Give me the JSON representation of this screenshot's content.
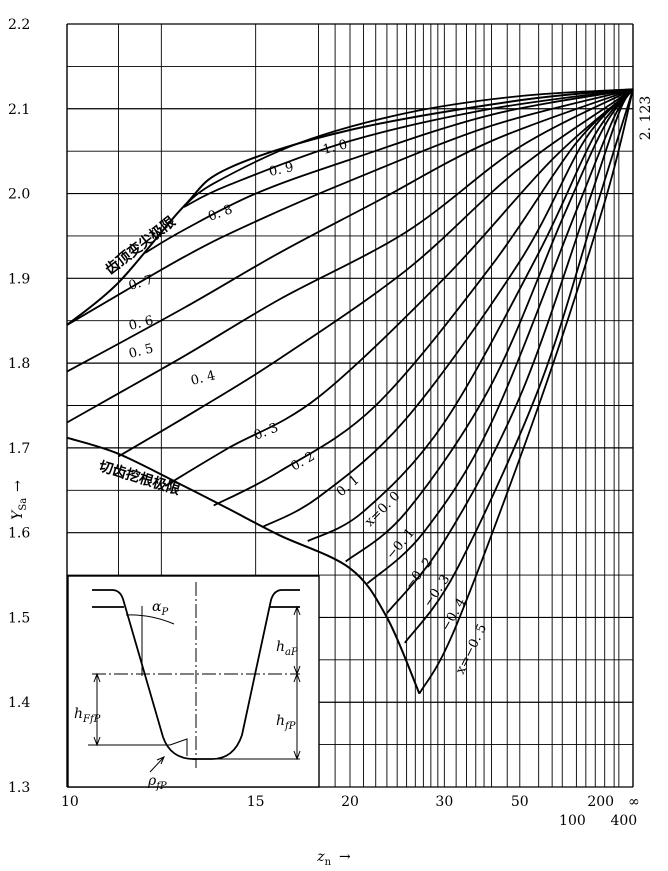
{
  "chart_data": {
    "type": "line",
    "x_scale": "reciprocal",
    "x_ticks": [
      "10",
      "15",
      "20",
      "30",
      "50",
      "200",
      "∞"
    ],
    "x_ticks_second_row": [
      "100",
      "400"
    ],
    "x_label_main": "z",
    "x_label_sub": "n",
    "x_label_arrow": "→",
    "y_ticks": [
      "1.3",
      "1.4",
      "1.5",
      "1.6",
      "1.7",
      "1.8",
      "1.9",
      "2.0",
      "2.1",
      "2.2"
    ],
    "y_label_main": "Y",
    "y_label_sub": "Sa",
    "y_label_arrow": "→",
    "ylim": [
      1.3,
      2.2
    ],
    "xlim": [
      10,
      "∞"
    ],
    "grid": true,
    "convergence_label": "2. 123",
    "convergence_value": 2.123,
    "curve_labels": [
      {
        "x": "1.0",
        "label": "1. 0"
      },
      {
        "x": "0.9",
        "label": "0. 9"
      },
      {
        "x": "0.8",
        "label": "0. 8"
      },
      {
        "x": "0.7",
        "label": "0. 7"
      },
      {
        "x": "0.6",
        "label": "0. 6"
      },
      {
        "x": "0.5",
        "label": "0. 5"
      },
      {
        "x": "0.4",
        "label": "0. 4"
      },
      {
        "x": "0.3",
        "label": "0. 3"
      },
      {
        "x": "0.2",
        "label": "0. 2"
      },
      {
        "x": "0.1",
        "label": "0. 1"
      },
      {
        "x": "0.0",
        "label": "x=0. 0"
      },
      {
        "x": "-0.1",
        "label": "−0. 1"
      },
      {
        "x": "-0.2",
        "label": "−0. 2"
      },
      {
        "x": "-0.3",
        "label": "−0. 3"
      },
      {
        "x": "-0.4",
        "label": "−0. 4"
      },
      {
        "x": "-0.5",
        "label": "x=−0. 5"
      }
    ],
    "series": [
      {
        "x_shift": 1.0,
        "points": [
          [
            12.6,
            1.985
          ],
          [
            13.5,
            2.012
          ],
          [
            17,
            2.06
          ],
          [
            25,
            2.095
          ],
          [
            50,
            2.115
          ],
          [
            "∞",
            2.123
          ]
        ]
      },
      {
        "x_shift": 0.9,
        "points": [
          [
            12.6,
            1.984
          ],
          [
            14,
            2.01
          ],
          [
            20,
            2.062
          ],
          [
            40,
            2.1
          ],
          [
            "∞",
            2.123
          ]
        ]
      },
      {
        "x_shift": 0.8,
        "points": [
          [
            11.6,
            1.93
          ],
          [
            12.6,
            1.957
          ],
          [
            15,
            2.0
          ],
          [
            20,
            2.04
          ],
          [
            40,
            2.093
          ],
          [
            "∞",
            2.123
          ]
        ]
      },
      {
        "x_shift": 0.7,
        "points": [
          [
            10,
            1.845
          ],
          [
            12.6,
            1.925
          ],
          [
            15,
            1.967
          ],
          [
            20,
            2.015
          ],
          [
            40,
            2.08
          ],
          [
            "∞",
            2.123
          ]
        ]
      },
      {
        "x_shift": 0.6,
        "points": [
          [
            10,
            1.79
          ],
          [
            12.6,
            1.865
          ],
          [
            16,
            1.93
          ],
          [
            22,
            1.99
          ],
          [
            40,
            2.062
          ],
          [
            "∞",
            2.123
          ]
        ]
      },
      {
        "x_shift": 0.5,
        "points": [
          [
            10,
            1.73
          ],
          [
            12.6,
            1.808
          ],
          [
            16,
            1.875
          ],
          [
            25,
            1.955
          ],
          [
            50,
            2.055
          ],
          [
            "∞",
            2.123
          ]
        ]
      },
      {
        "x_shift": 0.4,
        "points": [
          [
            11,
            1.69
          ],
          [
            13,
            1.745
          ],
          [
            16,
            1.805
          ],
          [
            25,
            1.91
          ],
          [
            50,
            2.03
          ],
          [
            "∞",
            2.123
          ]
        ]
      },
      {
        "x_shift": 0.3,
        "points": [
          [
            12.1,
            1.655
          ],
          [
            14,
            1.7
          ],
          [
            18,
            1.76
          ],
          [
            30,
            1.9
          ],
          [
            70,
            2.04
          ],
          [
            "∞",
            2.123
          ]
        ]
      },
      {
        "x_shift": 0.2,
        "points": [
          [
            13.5,
            1.632
          ],
          [
            16,
            1.672
          ],
          [
            22,
            1.75
          ],
          [
            40,
            1.915
          ],
          [
            100,
            2.06
          ],
          [
            "∞",
            2.123
          ]
        ]
      },
      {
        "x_shift": 0.1,
        "points": [
          [
            15.3,
            1.607
          ],
          [
            18,
            1.642
          ],
          [
            25,
            1.735
          ],
          [
            50,
            1.92
          ],
          [
            120,
            2.065
          ],
          [
            "∞",
            2.123
          ]
        ]
      },
      {
        "x_shift": 0.0,
        "points": [
          [
            17.4,
            1.59
          ],
          [
            21,
            1.625
          ],
          [
            30,
            1.73
          ],
          [
            60,
            1.93
          ],
          [
            150,
            2.07
          ],
          [
            "∞",
            2.123
          ]
        ]
      },
      {
        "x_shift": -0.1,
        "points": [
          [
            19.7,
            1.566
          ],
          [
            25,
            1.625
          ],
          [
            40,
            1.775
          ],
          [
            80,
            1.97
          ],
          [
            200,
            2.08
          ],
          [
            "∞",
            2.123
          ]
        ]
      },
      {
        "x_shift": -0.2,
        "points": [
          [
            21.3,
            1.54
          ],
          [
            27,
            1.6
          ],
          [
            40,
            1.73
          ],
          [
            100,
            1.98
          ],
          [
            300,
            2.09
          ],
          [
            "∞",
            2.123
          ]
        ]
      },
      {
        "x_shift": -0.3,
        "points": [
          [
            23,
            1.505
          ],
          [
            30,
            1.59
          ],
          [
            50,
            1.76
          ],
          [
            120,
            1.98
          ],
          [
            400,
            2.095
          ],
          [
            "∞",
            2.123
          ]
        ]
      },
      {
        "x_shift": -0.4,
        "points": [
          [
            24.8,
            1.47
          ],
          [
            32,
            1.555
          ],
          [
            60,
            1.77
          ],
          [
            150,
            1.98
          ],
          [
            "∞",
            2.123
          ]
        ]
      },
      {
        "x_shift": -0.5,
        "points": [
          [
            26.5,
            1.41
          ],
          [
            32,
            1.49
          ],
          [
            60,
            1.75
          ],
          [
            200,
            1.99
          ],
          [
            "∞",
            2.123
          ]
        ]
      }
    ],
    "tip_limit_label": "齿顶变尖极限",
    "tip_limit_curve": [
      [
        10,
        1.845
      ],
      [
        11,
        1.895
      ],
      [
        12.6,
        1.985
      ],
      [
        14,
        2.03
      ],
      [
        20,
        2.075
      ],
      [
        50,
        2.11
      ],
      [
        "∞",
        2.123
      ]
    ],
    "undercut_limit_label": "切齿挖根极限",
    "undercut_limit_curve": [
      [
        10,
        1.712
      ],
      [
        11,
        1.693
      ],
      [
        12.6,
        1.655
      ],
      [
        14,
        1.628
      ],
      [
        16,
        1.597
      ],
      [
        20,
        1.558
      ],
      [
        23,
        1.5
      ],
      [
        26.5,
        1.41
      ]
    ],
    "inset": {
      "alpha_label": "α",
      "alpha_sub": "P",
      "h_aP_main": "h",
      "h_aP_sub": "aP",
      "h_fP_main": "h",
      "h_fP_sub": "fP",
      "h_ffP_main": "h",
      "h_ffP_sub": "FfP",
      "rho_main": "ρ",
      "rho_sub": "fP"
    }
  }
}
